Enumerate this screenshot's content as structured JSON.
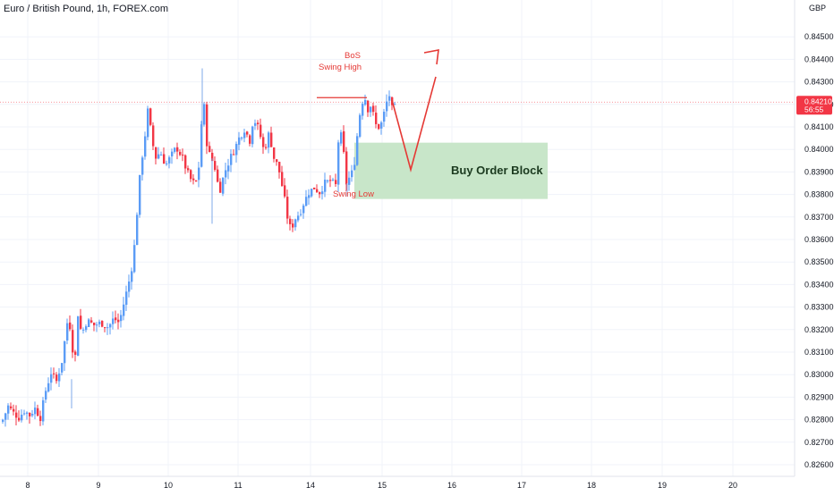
{
  "chart_data": {
    "type": "candlestick",
    "title": "Euro / British Pound, 1h, FOREX.com",
    "currency": "GBP",
    "y_ticks": [
      "0.84500",
      "0.84400",
      "0.84300",
      "0.84200",
      "0.84100",
      "0.84000",
      "0.83900",
      "0.83800",
      "0.83700",
      "0.83600",
      "0.83500",
      "0.83400",
      "0.83300",
      "0.83200",
      "0.83100",
      "0.83000",
      "0.82900",
      "0.82800",
      "0.82700",
      "0.82600"
    ],
    "ylim": [
      0.8255,
      0.8452
    ],
    "x_ticks": [
      "8",
      "9",
      "10",
      "11",
      "14",
      "15",
      "16",
      "17",
      "18",
      "19",
      "20"
    ],
    "last_price": "0.84210",
    "countdown": "56:55",
    "colors": {
      "up": "#5b9cf6",
      "down": "#f23645",
      "order_block": "#c8e6c9",
      "annotation": "#e53935"
    },
    "annotations": {
      "bos": "BoS",
      "swing_high": "Swing High",
      "swing_low": "Swing Low",
      "order_block": "Buy Order Block"
    },
    "order_block_range": [
      0.8378,
      0.8403
    ],
    "swing_high_price": 0.8423,
    "projection": {
      "pullback_to": 0.8391,
      "target": 0.8437
    }
  }
}
